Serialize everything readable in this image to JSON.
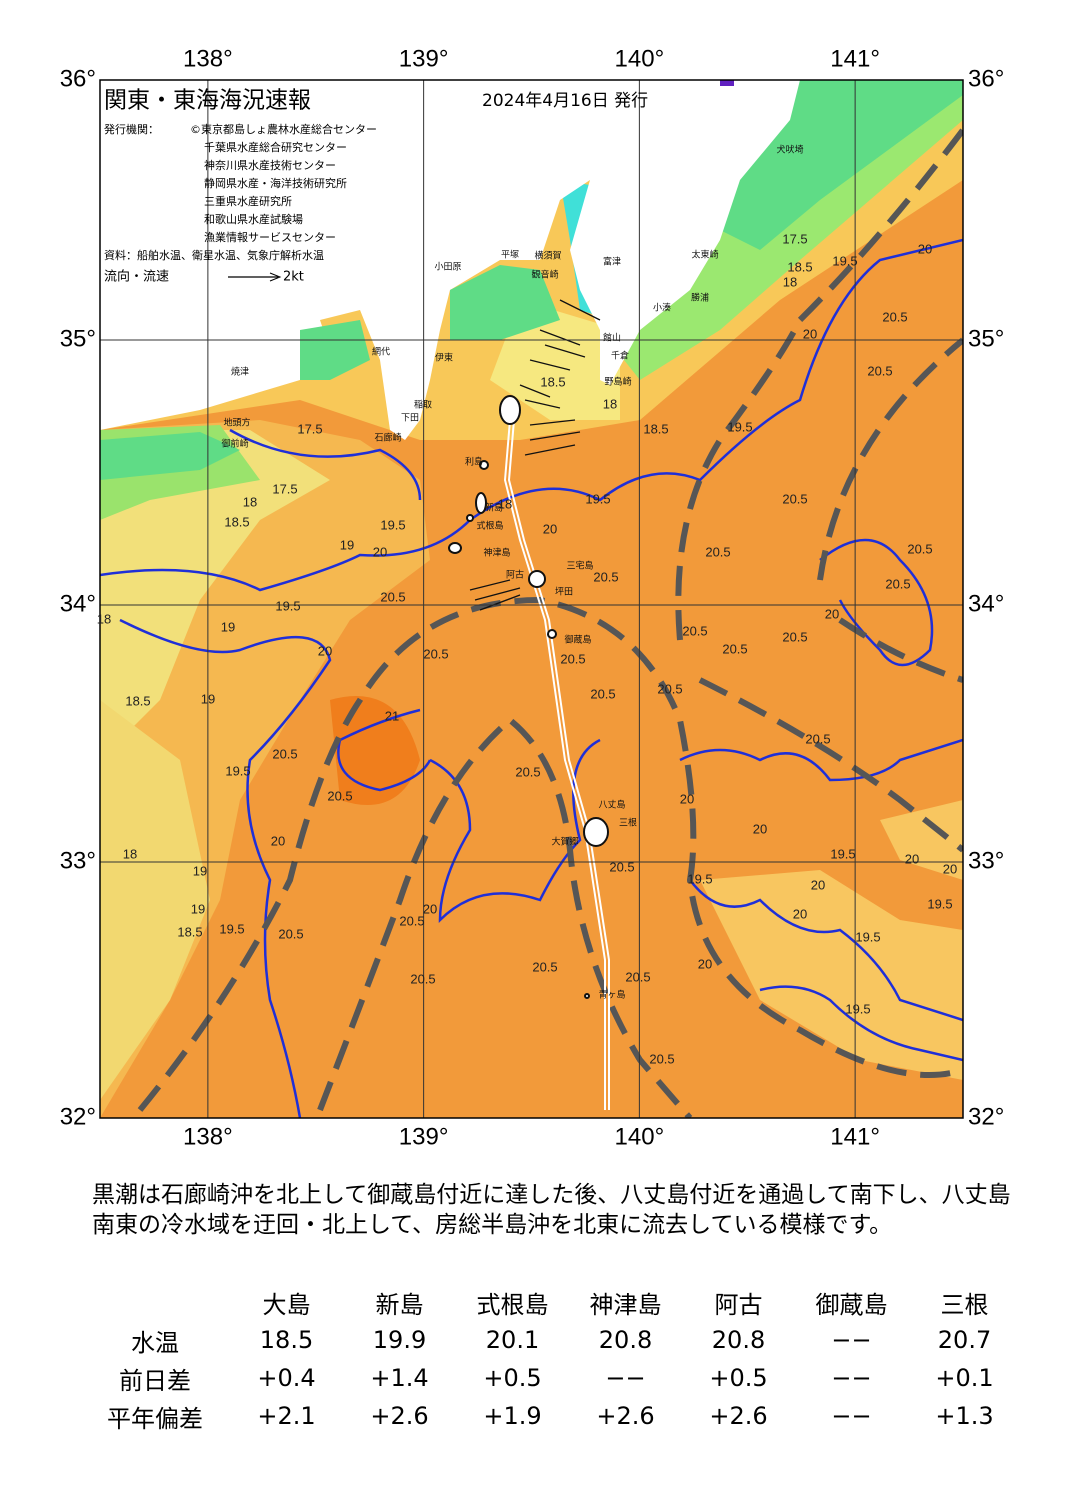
{
  "header": {
    "title": "関東・東海海況速報",
    "date": "2024年4月16日 発行",
    "issuer_label": "発行機関：",
    "issuers": [
      "©東京都島しょ農林水産総合センター",
      "千葉県水産総合研究センター",
      "神奈川県水産技術センター",
      "静岡県水産・海洋技術研究所",
      "三重県水産研究所",
      "和歌山県水産試験場",
      "漁業情報サービスセンター"
    ],
    "sources": "資料：船舶水温、衛星水温、気象庁解析水温",
    "flow_label": "流向・流速",
    "flow_unit": "2kt"
  },
  "map": {
    "lon_ticks": [
      {
        "value": 138,
        "label": "138°"
      },
      {
        "value": 139,
        "label": "139°"
      },
      {
        "value": 140,
        "label": "140°"
      },
      {
        "value": 141,
        "label": "141°"
      }
    ],
    "lat_ticks": [
      {
        "value": 36,
        "label": "36°"
      },
      {
        "value": 35,
        "label": "35°"
      },
      {
        "value": 34,
        "label": "34°"
      },
      {
        "value": 33,
        "label": "33°"
      },
      {
        "value": 32,
        "label": "32°"
      }
    ],
    "places": [
      "犬吠埼",
      "太東崎",
      "勝浦",
      "小湊",
      "野島崎",
      "千倉",
      "館山",
      "富津",
      "観音崎",
      "横須賀",
      "平塚",
      "小田原",
      "網代",
      "伊東",
      "稲取",
      "下田",
      "石廊崎",
      "御前崎",
      "地頭方",
      "焼津",
      "利島",
      "新島",
      "式根島",
      "神津島",
      "三宅島",
      "阿古",
      "坪田",
      "御蔵島",
      "八丈島",
      "三根",
      "大賀郷",
      "青ヶ島"
    ],
    "isotherm_labels": [
      "17.5",
      "17.5",
      "18",
      "18.5",
      "19",
      "19.5",
      "20",
      "19.5",
      "20.5",
      "18",
      "19",
      "20",
      "18.5",
      "19",
      "20.5",
      "21",
      "20.5",
      "19.5",
      "20.5",
      "20",
      "18",
      "19",
      "19",
      "18.5",
      "19.5",
      "20.5",
      "20.5",
      "20",
      "20.5",
      "20.5",
      "20.5",
      "20.5",
      "18.5",
      "18",
      "18.5",
      "19.5",
      "19.5",
      "20",
      "20.5",
      "18",
      "20.5",
      "20.5",
      "20.5",
      "20.5",
      "20.5",
      "20.5",
      "20.5",
      "20.5",
      "20.5",
      "20.5",
      "20.5",
      "20",
      "20.5",
      "20.5",
      "20",
      "19.5",
      "20",
      "17.5",
      "18",
      "18.5",
      "20.5",
      "20",
      "20.5",
      "19.5",
      "20",
      "20",
      "20",
      "19.5",
      "19.5",
      "19.5",
      "19.5",
      "20",
      "20",
      "20"
    ]
  },
  "description": "黒潮は石廊崎沖を北上して御蔵島付近に達した後、八丈島付近を通過して南下し、八丈島南東の冷水域を迂回・北上して、房総半島沖を北東に流去している模様です。",
  "table": {
    "columns": [
      "大島",
      "新島",
      "式根島",
      "神津島",
      "阿古",
      "御蔵島",
      "三根"
    ],
    "rows": [
      {
        "label": "水温",
        "values": [
          "18.5",
          "19.9",
          "20.1",
          "20.8",
          "20.8",
          "−−",
          "20.7"
        ]
      },
      {
        "label": "前日差",
        "values": [
          "+0.4",
          "+1.4",
          "+0.5",
          "−−",
          "+0.5",
          "−−",
          "+0.1"
        ]
      },
      {
        "label": "平年偏差",
        "values": [
          "+2.1",
          "+2.6",
          "+1.9",
          "+2.6",
          "+2.6",
          "−−",
          "+1.3"
        ]
      }
    ]
  }
}
